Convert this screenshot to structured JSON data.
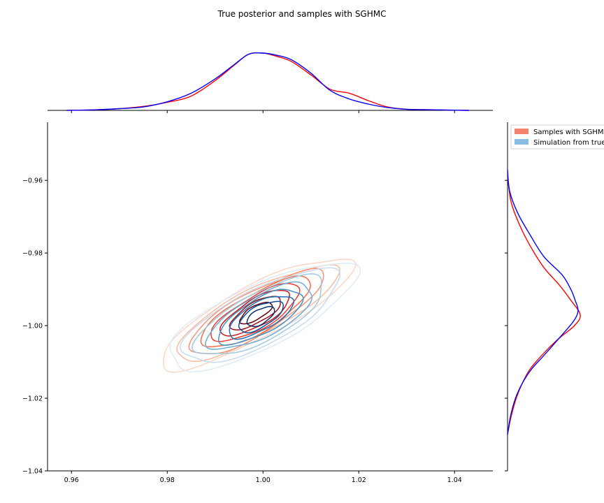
{
  "chart_data": {
    "type": "jointplot-kde",
    "title": "True posterior and samples with SGHMC",
    "xlabel": "",
    "ylabel": "",
    "xlim": [
      0.955,
      1.048
    ],
    "ylim": [
      -1.04,
      -0.944
    ],
    "xticks": [
      0.96,
      0.98,
      1.0,
      1.02,
      1.04
    ],
    "xtick_labels": [
      "0.96",
      "0.98",
      "1.00",
      "1.02",
      "1.04"
    ],
    "yticks": [
      -0.96,
      -0.98,
      -1.0,
      -1.02,
      -1.04
    ],
    "ytick_labels": [
      "−0.96",
      "−0.98",
      "−1.00",
      "−1.02",
      "−1.04"
    ],
    "grid": false,
    "legend_position": "top-right",
    "series": [
      {
        "name": "Samples with SGHMC",
        "legend_color": "#f4836b",
        "line_color": "#ff0000",
        "cmap": "Reds",
        "mean": [
          0.9985,
          -0.9965
        ],
        "contours": [
          {
            "a": 0.0225,
            "b": 0.0055,
            "angle": 28,
            "color": "#fdd6c6"
          },
          {
            "a": 0.019,
            "b": 0.0048,
            "angle": 28,
            "color": "#fcbba1"
          },
          {
            "a": 0.016,
            "b": 0.0044,
            "angle": 30,
            "color": "#fc9272"
          },
          {
            "a": 0.013,
            "b": 0.004,
            "angle": 30,
            "color": "#fb6a4a"
          },
          {
            "a": 0.0105,
            "b": 0.0034,
            "angle": 30,
            "color": "#ef3b2c"
          },
          {
            "a": 0.0082,
            "b": 0.0028,
            "angle": 30,
            "color": "#cb181d"
          },
          {
            "a": 0.006,
            "b": 0.0021,
            "angle": 30,
            "color": "#a50f15"
          },
          {
            "a": 0.0038,
            "b": 0.0014,
            "angle": 30,
            "color": "#67000d"
          }
        ],
        "x_marginal": {
          "x": [
            0.959,
            0.965,
            0.97,
            0.975,
            0.98,
            0.985,
            0.99,
            0.994,
            0.997,
            1.0,
            1.003,
            1.006,
            1.01,
            1.014,
            1.018,
            1.022,
            1.026,
            1.03,
            1.036,
            1.043
          ],
          "density": [
            0.0,
            0.01,
            0.03,
            0.07,
            0.14,
            0.25,
            0.52,
            0.79,
            0.98,
            1.0,
            0.94,
            0.85,
            0.62,
            0.37,
            0.3,
            0.17,
            0.06,
            0.02,
            0.01,
            0.0
          ]
        },
        "y_marginal": {
          "y": [
            -0.959,
            -0.966,
            -0.972,
            -0.978,
            -0.984,
            -0.989,
            -0.993,
            -0.997,
            -1.0,
            -1.004,
            -1.008,
            -1.012,
            -1.016,
            -1.02,
            -1.025,
            -1.03
          ],
          "density": [
            0.0,
            0.05,
            0.16,
            0.31,
            0.5,
            0.72,
            0.87,
            1.0,
            0.92,
            0.68,
            0.48,
            0.31,
            0.2,
            0.12,
            0.05,
            0.0
          ]
        }
      },
      {
        "name": "Simulation from true",
        "legend_color": "#88bde6",
        "line_color": "#0000ff",
        "cmap": "Blues",
        "mean": [
          0.9995,
          -0.9975
        ],
        "contours": [
          {
            "a": 0.0215,
            "b": 0.0066,
            "angle": 26,
            "color": "#deebf7"
          },
          {
            "a": 0.018,
            "b": 0.0058,
            "angle": 27,
            "color": "#c6dbef"
          },
          {
            "a": 0.015,
            "b": 0.005,
            "angle": 28,
            "color": "#9ecae1"
          },
          {
            "a": 0.0122,
            "b": 0.0043,
            "angle": 28,
            "color": "#6baed6"
          },
          {
            "a": 0.0098,
            "b": 0.0036,
            "angle": 29,
            "color": "#4292c6"
          },
          {
            "a": 0.0075,
            "b": 0.0029,
            "angle": 29,
            "color": "#2171b5"
          },
          {
            "a": 0.0052,
            "b": 0.0022,
            "angle": 30,
            "color": "#08519c"
          },
          {
            "a": 0.0032,
            "b": 0.0015,
            "angle": 30,
            "color": "#08306b"
          }
        ],
        "x_marginal": {
          "x": [
            0.959,
            0.965,
            0.97,
            0.975,
            0.98,
            0.985,
            0.99,
            0.994,
            0.997,
            1.0,
            1.003,
            1.006,
            1.01,
            1.014,
            1.018,
            1.022,
            1.026,
            1.03,
            1.036,
            1.043
          ],
          "density": [
            0.0,
            0.01,
            0.03,
            0.06,
            0.15,
            0.3,
            0.55,
            0.8,
            0.98,
            1.0,
            0.96,
            0.88,
            0.65,
            0.35,
            0.2,
            0.11,
            0.05,
            0.02,
            0.01,
            0.0
          ]
        },
        "y_marginal": {
          "y": [
            -0.957,
            -0.963,
            -0.969,
            -0.975,
            -0.981,
            -0.986,
            -0.99,
            -0.993,
            -0.996,
            -0.999,
            -1.003,
            -1.008,
            -1.012,
            -1.016,
            -1.02,
            -1.025,
            -1.03
          ],
          "density": [
            0.0,
            0.03,
            0.14,
            0.31,
            0.5,
            0.75,
            0.87,
            0.93,
            0.97,
            0.9,
            0.73,
            0.51,
            0.33,
            0.2,
            0.11,
            0.04,
            0.0
          ]
        }
      }
    ]
  }
}
